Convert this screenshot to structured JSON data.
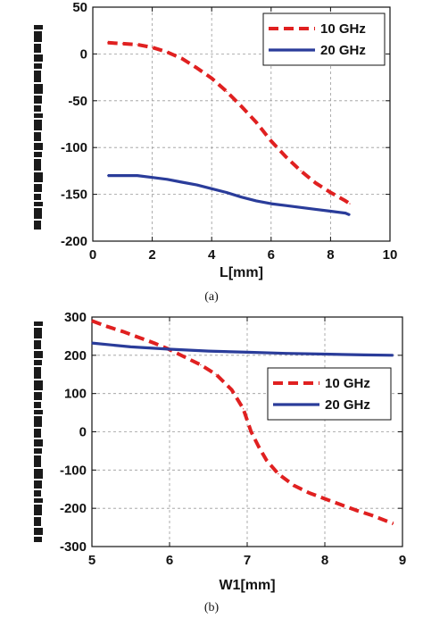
{
  "chart_data": [
    {
      "type": "line",
      "caption": "(a)",
      "xlabel": "L[mm]",
      "ylabel": "",
      "xlim": [
        0,
        10
      ],
      "ylim": [
        -200,
        50
      ],
      "xticks": [
        "0",
        "2",
        "4",
        "6",
        "8",
        "10"
      ],
      "yticks": [
        "-200",
        "-150",
        "-100",
        "-50",
        "0",
        "50"
      ],
      "grid": true,
      "legend_position": "top-right",
      "series": [
        {
          "name": "10 GHz",
          "color": "#e02020",
          "dash": "dashed",
          "x": [
            0.5,
            1.0,
            1.5,
            2.0,
            2.5,
            3.0,
            3.5,
            4.0,
            4.5,
            5.0,
            5.5,
            6.0,
            6.5,
            7.0,
            7.5,
            8.0,
            8.5,
            8.65
          ],
          "y": [
            12,
            11,
            10,
            7,
            2,
            -5,
            -15,
            -26,
            -40,
            -56,
            -73,
            -93,
            -110,
            -125,
            -138,
            -148,
            -157,
            -160
          ]
        },
        {
          "name": "20 GHz",
          "color": "#2a3c9a",
          "dash": "solid",
          "x": [
            0.5,
            1.0,
            1.5,
            2.0,
            2.5,
            3.0,
            3.5,
            4.0,
            4.5,
            5.0,
            5.5,
            6.0,
            6.5,
            7.0,
            7.5,
            8.0,
            8.5,
            8.65
          ],
          "y": [
            -130,
            -130,
            -130,
            -132,
            -134,
            -137,
            -140,
            -144,
            -148,
            -153,
            -157,
            -160,
            -162,
            -164,
            -166,
            -168,
            -170,
            -172
          ]
        }
      ]
    },
    {
      "type": "line",
      "caption": "(b)",
      "xlabel": "W1[mm]",
      "ylabel": "",
      "xlim": [
        5,
        9
      ],
      "ylim": [
        -300,
        300
      ],
      "xticks": [
        "5",
        "6",
        "7",
        "8",
        "9"
      ],
      "yticks": [
        "-300",
        "-200",
        "-100",
        "0",
        "100",
        "200",
        "300"
      ],
      "grid": true,
      "legend_position": "top-right",
      "series": [
        {
          "name": "10 GHz",
          "color": "#e02020",
          "dash": "dashed",
          "x": [
            5.0,
            5.2,
            5.4,
            5.6,
            5.8,
            6.0,
            6.2,
            6.4,
            6.6,
            6.8,
            6.95,
            7.05,
            7.15,
            7.25,
            7.4,
            7.6,
            7.8,
            8.0,
            8.2,
            8.4,
            8.6,
            8.88
          ],
          "y": [
            290,
            275,
            262,
            247,
            232,
            215,
            195,
            175,
            150,
            110,
            60,
            0,
            -40,
            -75,
            -110,
            -140,
            -160,
            -175,
            -190,
            -205,
            -218,
            -240
          ]
        },
        {
          "name": "20 GHz",
          "color": "#2a3c9a",
          "dash": "solid",
          "x": [
            5.0,
            5.5,
            6.0,
            6.5,
            7.0,
            7.5,
            8.0,
            8.5,
            8.88
          ],
          "y": [
            232,
            222,
            216,
            211,
            208,
            205,
            203,
            201,
            200
          ]
        }
      ]
    }
  ]
}
